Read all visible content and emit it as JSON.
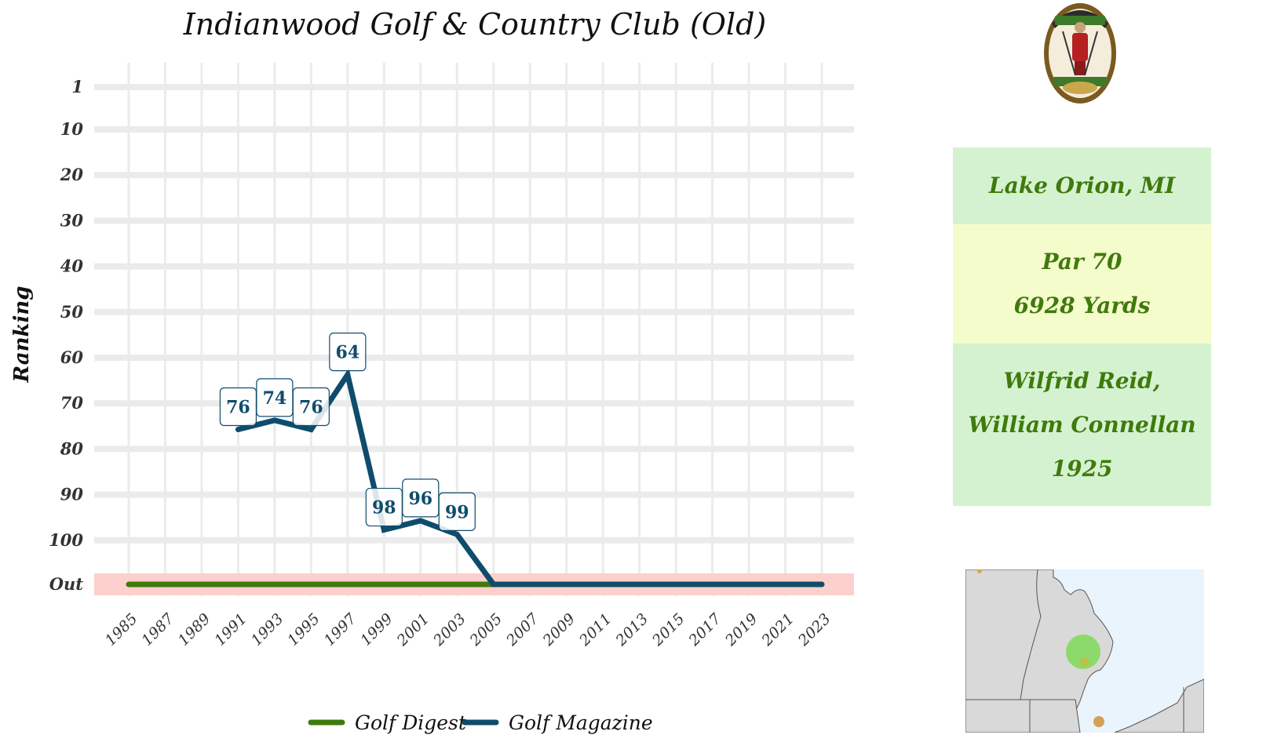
{
  "chart_data": {
    "type": "line",
    "title": "Indianwood Golf & Country Club (Old)",
    "xlabel": "",
    "ylabel": "Ranking",
    "x_ticks": [
      "1985",
      "1987",
      "1989",
      "1991",
      "1993",
      "1995",
      "1997",
      "1999",
      "2001",
      "2003",
      "2005",
      "2007",
      "2009",
      "2011",
      "2013",
      "2015",
      "2017",
      "2019",
      "2021",
      "2023"
    ],
    "y_ticks": [
      "1",
      "10",
      "20",
      "30",
      "40",
      "50",
      "60",
      "70",
      "80",
      "90",
      "100",
      "Out"
    ],
    "y_inverted": true,
    "out_band_color": "#fcd0cc",
    "grid": true,
    "legend_position": "bottom",
    "series": [
      {
        "name": "Golf Digest",
        "color": "#3f7a0d",
        "points": [
          {
            "x": 1985,
            "y": "Out"
          },
          {
            "x": 2005,
            "y": "Out"
          }
        ]
      },
      {
        "name": "Golf Magazine",
        "color": "#0f4c6c",
        "points": [
          {
            "x": 1991,
            "y": 76,
            "label": "76"
          },
          {
            "x": 1993,
            "y": 74,
            "label": "74"
          },
          {
            "x": 1995,
            "y": 76,
            "label": "76"
          },
          {
            "x": 1997,
            "y": 64,
            "label": "64"
          },
          {
            "x": 1999,
            "y": 98,
            "label": "98"
          },
          {
            "x": 2001,
            "y": 96,
            "label": "96"
          },
          {
            "x": 2003,
            "y": 99,
            "label": "99"
          },
          {
            "x": 2005,
            "y": "Out"
          },
          {
            "x": 2023,
            "y": "Out"
          }
        ]
      }
    ]
  },
  "info": {
    "location": "Lake Orion, MI",
    "par": "Par 70",
    "yards": "6928 Yards",
    "architect_line1": "Wilfrid Reid,",
    "architect_line2": "William Connellan",
    "year": "1925"
  },
  "colors": {
    "location_bg": "#d5f2d0",
    "par_bg": "#f5fccb",
    "architect_bg": "#d5f2d0",
    "info_text": "#3f7a0d",
    "map_water": "#eaf4fc",
    "map_land": "#d9d9d9",
    "map_marker_main": "#7ed957",
    "map_marker_other": "#d4a056"
  },
  "icons": {
    "logo": "club-crest-logo",
    "map": "michigan-location-map"
  }
}
